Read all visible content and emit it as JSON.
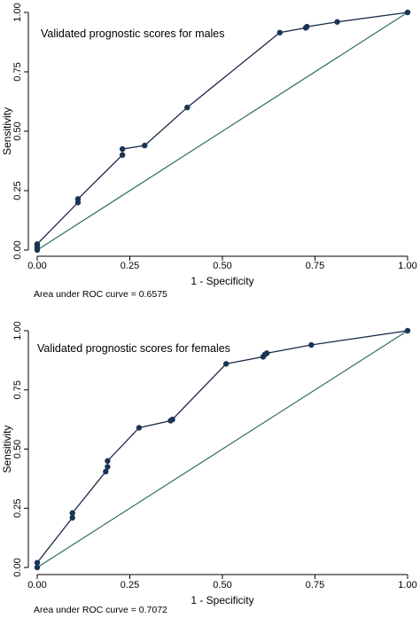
{
  "chart_data": [
    {
      "type": "line",
      "title": "Validated prognostic scores for males",
      "xlabel": "1 - Specificity",
      "ylabel": "Sensitivity",
      "xlim": [
        0,
        1
      ],
      "ylim": [
        0,
        1
      ],
      "x_ticks": [
        "0.00",
        "0.25",
        "0.50",
        "0.75",
        "1.00"
      ],
      "y_ticks": [
        "0.00",
        "0.25",
        "0.50",
        "0.75",
        "1.00"
      ],
      "grid": false,
      "series": [
        {
          "x": [
            0.0,
            0.0,
            0.0,
            0.0,
            0.11,
            0.11,
            0.23,
            0.23,
            0.29,
            0.405,
            0.655,
            0.725,
            0.728,
            0.81,
            1.0
          ],
          "y": [
            0.0,
            0.01,
            0.02,
            0.025,
            0.2,
            0.215,
            0.4,
            0.425,
            0.44,
            0.6,
            0.915,
            0.935,
            0.94,
            0.96,
            1.0
          ]
        },
        {
          "x": [
            0.0,
            1.0
          ],
          "y": [
            0.0,
            1.0
          ]
        }
      ],
      "note": "Area under ROC curve = 0.6575",
      "colors": {
        "curve": "#1b2a49",
        "marker": "#1a3553",
        "reference": "#2f6c60",
        "axis": "#000000"
      }
    },
    {
      "type": "line",
      "title": "Validated prognostic scores for females",
      "xlabel": "1 - Specificity",
      "ylabel": "Sensitivity",
      "xlim": [
        0,
        1
      ],
      "ylim": [
        0,
        1
      ],
      "x_ticks": [
        "0.00",
        "0.25",
        "0.50",
        "0.75",
        "1.00"
      ],
      "y_ticks": [
        "0.00",
        "0.25",
        "0.50",
        "0.75",
        "1.00"
      ],
      "grid": false,
      "series": [
        {
          "x": [
            0.0,
            0.0,
            0.095,
            0.095,
            0.185,
            0.19,
            0.19,
            0.275,
            0.36,
            0.365,
            0.51,
            0.61,
            0.615,
            0.62,
            0.74,
            1.0
          ],
          "y": [
            0.0,
            0.02,
            0.21,
            0.23,
            0.405,
            0.425,
            0.45,
            0.59,
            0.62,
            0.625,
            0.86,
            0.89,
            0.9,
            0.905,
            0.94,
            1.0
          ]
        },
        {
          "x": [
            0.0,
            1.0
          ],
          "y": [
            0.0,
            1.0
          ]
        }
      ],
      "note": "Area under ROC curve = 0.7072",
      "colors": {
        "curve": "#1b2a49",
        "marker": "#1a3553",
        "reference": "#2f6c60",
        "axis": "#000000"
      }
    }
  ]
}
